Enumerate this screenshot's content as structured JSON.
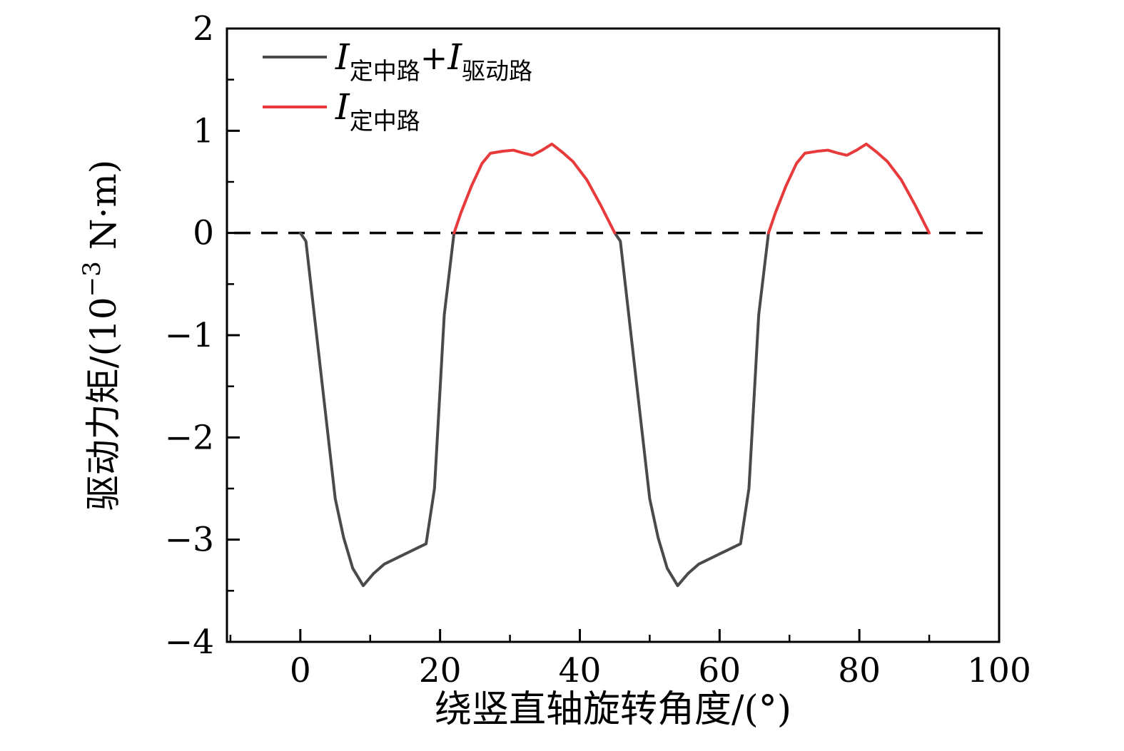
{
  "figure": {
    "background": "#ffffff",
    "axis_color": "#000000"
  },
  "chart_data": {
    "type": "line",
    "title": "",
    "xlabel_parts": [
      {
        "t": "绕竖直轴旋转角度/(°)",
        "s": "n"
      }
    ],
    "ylabel_parts": [
      {
        "t": "驱动力矩/(10",
        "s": "n"
      },
      {
        "t": "−3",
        "s": "sup"
      },
      {
        "t": " N·m)",
        "s": "n"
      }
    ],
    "xlim": [
      -10.5,
      100
    ],
    "ylim": [
      -4,
      2
    ],
    "xticks": [
      0,
      20,
      40,
      60,
      80,
      100
    ],
    "yticks": [
      -4,
      -3,
      -2,
      -1,
      0,
      1,
      2
    ],
    "x_minor_ticks": [
      -10,
      10,
      30,
      50,
      70,
      90
    ],
    "y_minor_ticks": [
      -3.5,
      -2.5,
      -1.5,
      -0.5,
      0.5,
      1.5
    ],
    "grid": false,
    "zero_line": {
      "y": 0,
      "dash": true,
      "color": "#000000"
    },
    "legend_position": "top-left",
    "series": [
      {
        "name_parts": [
          {
            "t": "I",
            "s": "var"
          },
          {
            "t": "定中路",
            "s": "sub"
          },
          {
            "t": "+",
            "s": "plus"
          },
          {
            "t": "I",
            "s": "var"
          },
          {
            "t": "驱动路",
            "s": "sub"
          }
        ],
        "color": "#4a4a4a",
        "line_width": 4,
        "segments": [
          {
            "x": [
              0,
              0.8,
              3,
              5,
              6.2,
              7.5,
              9,
              10.5,
              12,
              15,
              18,
              19.2,
              20.6,
              22
            ],
            "y": [
              0,
              -0.08,
              -1.4,
              -2.6,
              -2.98,
              -3.28,
              -3.45,
              -3.33,
              -3.24,
              -3.14,
              -3.04,
              -2.5,
              -0.8,
              0
            ]
          },
          {
            "x": [
              45,
              45.8,
              48,
              50,
              51.2,
              52.5,
              54,
              55.5,
              57,
              60,
              63,
              64.2,
              65.6,
              67
            ],
            "y": [
              0,
              -0.08,
              -1.4,
              -2.6,
              -2.98,
              -3.28,
              -3.45,
              -3.33,
              -3.24,
              -3.14,
              -3.04,
              -2.5,
              -0.8,
              0
            ]
          }
        ]
      },
      {
        "name_parts": [
          {
            "t": "I",
            "s": "var"
          },
          {
            "t": "定中路",
            "s": "sub"
          }
        ],
        "color": "#e83a3b",
        "line_width": 4,
        "segments": [
          {
            "x": [
              22,
              23,
              24.5,
              26,
              27.2,
              29,
              30.5,
              32,
              33.2,
              34.6,
              36,
              37.5,
              39,
              41,
              43,
              45
            ],
            "y": [
              0,
              0.2,
              0.46,
              0.68,
              0.78,
              0.8,
              0.81,
              0.78,
              0.76,
              0.81,
              0.87,
              0.79,
              0.7,
              0.52,
              0.27,
              0
            ]
          },
          {
            "x": [
              67,
              68,
              69.5,
              71,
              72.2,
              74,
              75.5,
              77,
              78.2,
              79.6,
              81,
              82.5,
              84,
              86,
              88,
              90
            ],
            "y": [
              0,
              0.2,
              0.46,
              0.68,
              0.78,
              0.8,
              0.81,
              0.78,
              0.76,
              0.81,
              0.87,
              0.79,
              0.7,
              0.52,
              0.27,
              0
            ]
          }
        ]
      }
    ]
  }
}
